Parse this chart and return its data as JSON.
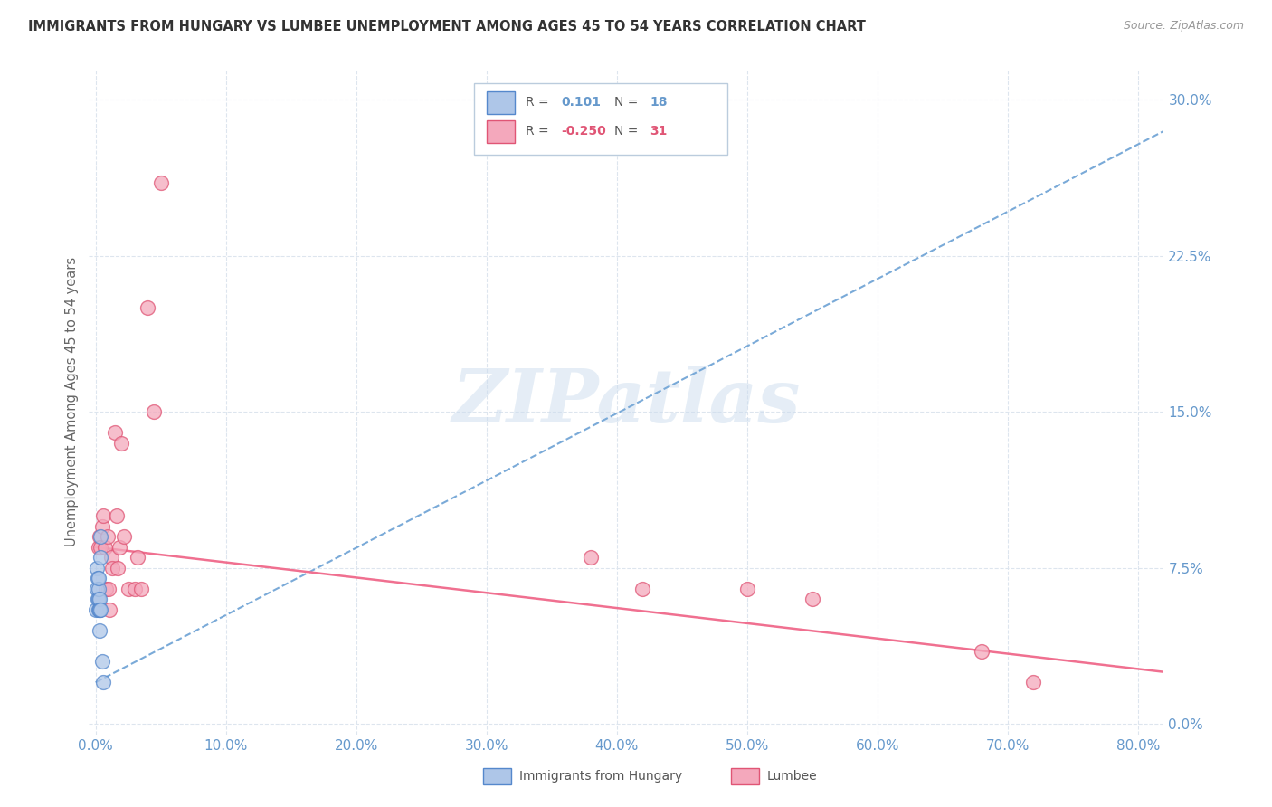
{
  "title": "IMMIGRANTS FROM HUNGARY VS LUMBEE UNEMPLOYMENT AMONG AGES 45 TO 54 YEARS CORRELATION CHART",
  "source": "Source: ZipAtlas.com",
  "ylabel": "Unemployment Among Ages 45 to 54 years",
  "xlim": [
    -0.005,
    0.82
  ],
  "ylim": [
    -0.005,
    0.315
  ],
  "yticks": [
    0.0,
    0.075,
    0.15,
    0.225,
    0.3
  ],
  "xticks": [
    0.0,
    0.1,
    0.2,
    0.3,
    0.4,
    0.5,
    0.6,
    0.7,
    0.8
  ],
  "blue_color": "#aec6e8",
  "pink_color": "#f4a8bc",
  "blue_edge_color": "#5588cc",
  "pink_edge_color": "#e05575",
  "blue_line_color": "#7aaad8",
  "pink_line_color": "#f07090",
  "tick_label_color": "#6699cc",
  "grid_color": "#dde5ee",
  "background_color": "#ffffff",
  "legend_r_blue": "0.101",
  "legend_n_blue": "18",
  "legend_r_pink": "-0.250",
  "legend_n_pink": "31",
  "watermark_text": "ZIPatlas",
  "blue_scatter_x": [
    0.0005,
    0.001,
    0.001,
    0.0015,
    0.0015,
    0.002,
    0.002,
    0.002,
    0.0025,
    0.003,
    0.003,
    0.003,
    0.003,
    0.0035,
    0.004,
    0.004,
    0.005,
    0.006
  ],
  "blue_scatter_y": [
    0.055,
    0.065,
    0.075,
    0.06,
    0.07,
    0.06,
    0.065,
    0.055,
    0.07,
    0.055,
    0.06,
    0.055,
    0.045,
    0.055,
    0.08,
    0.09,
    0.03,
    0.02
  ],
  "pink_scatter_x": [
    0.002,
    0.003,
    0.004,
    0.005,
    0.006,
    0.007,
    0.008,
    0.009,
    0.01,
    0.011,
    0.012,
    0.013,
    0.015,
    0.016,
    0.017,
    0.018,
    0.02,
    0.022,
    0.025,
    0.03,
    0.032,
    0.035,
    0.04,
    0.045,
    0.05,
    0.38,
    0.42,
    0.5,
    0.55,
    0.68,
    0.72
  ],
  "pink_scatter_y": [
    0.085,
    0.09,
    0.085,
    0.095,
    0.1,
    0.085,
    0.065,
    0.09,
    0.065,
    0.055,
    0.08,
    0.075,
    0.14,
    0.1,
    0.075,
    0.085,
    0.135,
    0.09,
    0.065,
    0.065,
    0.08,
    0.065,
    0.2,
    0.15,
    0.26,
    0.08,
    0.065,
    0.065,
    0.06,
    0.035,
    0.02
  ],
  "blue_trend_x0": 0.0,
  "blue_trend_x1": 0.82,
  "blue_trend_y0": 0.02,
  "blue_trend_y1": 0.285,
  "pink_trend_x0": 0.0,
  "pink_trend_x1": 0.82,
  "pink_trend_y0": 0.085,
  "pink_trend_y1": 0.025
}
